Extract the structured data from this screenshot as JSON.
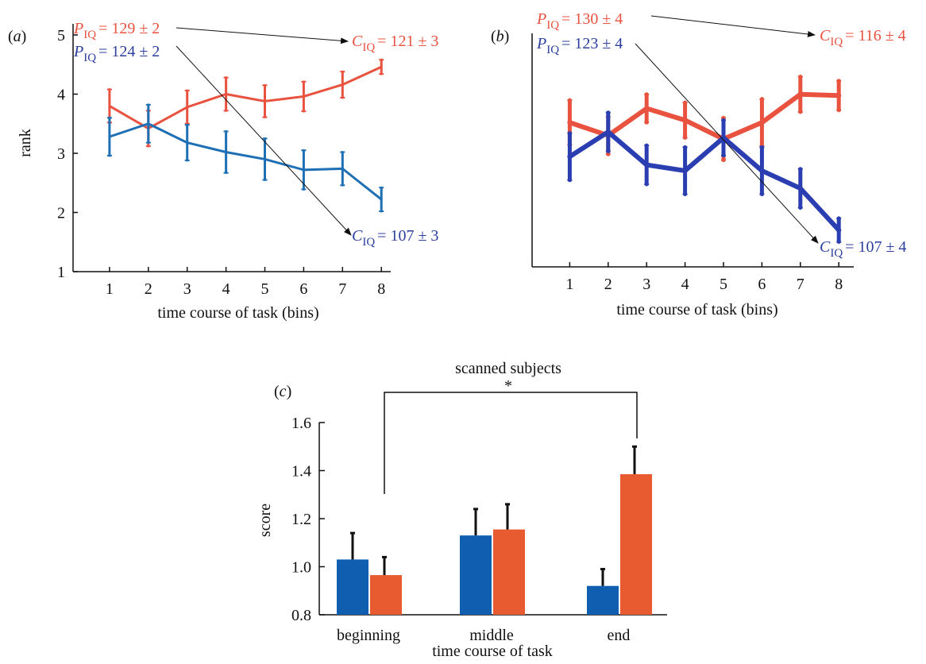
{
  "colors": {
    "red_line": "#e8523f",
    "blue_line": "#1f6fb5",
    "red_text": "#e8523f",
    "blue_text": "#2c3e9e",
    "red_bar": "#e85a30",
    "blue_bar": "#0f5eb0",
    "axis": "#111111"
  },
  "chart_data": [
    {
      "panel": "(a)",
      "panel_letter": "a",
      "type": "line",
      "xlabel": "time course of task (bins)",
      "ylabel": "rank",
      "x": [
        1,
        2,
        3,
        4,
        5,
        6,
        7,
        8
      ],
      "xlim": [
        0,
        8.5
      ],
      "ylim": [
        1,
        5
      ],
      "yticks": [
        1,
        2,
        3,
        4,
        5
      ],
      "series": [
        {
          "color": "#e8523f",
          "values": [
            3.8,
            3.42,
            3.78,
            4.0,
            3.88,
            3.96,
            4.16,
            4.46
          ],
          "errors": [
            0.28,
            0.3,
            0.28,
            0.28,
            0.27,
            0.25,
            0.22,
            0.12
          ]
        },
        {
          "color": "#1f6fb5",
          "values": [
            3.28,
            3.5,
            3.18,
            3.02,
            2.9,
            2.72,
            2.74,
            2.22
          ],
          "errors": [
            0.32,
            0.32,
            0.3,
            0.35,
            0.35,
            0.33,
            0.28,
            0.2
          ]
        }
      ],
      "annotations": [
        {
          "sym": "P",
          "sub": "IQ",
          "value": "= 129 ± 2",
          "color": "#e8523f"
        },
        {
          "sym": "P",
          "sub": "IQ",
          "value": "= 124 ± 2",
          "color": "#2c3e9e"
        },
        {
          "sym": "C",
          "sub": "IQ",
          "value": "= 121 ± 3",
          "color": "#e8523f"
        },
        {
          "sym": "C",
          "sub": "IQ",
          "value": "= 107 ± 3",
          "color": "#2c3e9e"
        }
      ]
    },
    {
      "panel": "(b)",
      "panel_letter": "b",
      "type": "line",
      "xlabel": "time course of task (bins)",
      "ylabel": "",
      "x": [
        1,
        2,
        3,
        4,
        5,
        6,
        7,
        8
      ],
      "xlim": [
        0,
        8.5
      ],
      "ylim": [
        1,
        5
      ],
      "series": [
        {
          "color": "#e8523f",
          "values": [
            3.78,
            3.56,
            4.02,
            3.82,
            3.5,
            3.78,
            4.26,
            4.24
          ],
          "errors": [
            0.38,
            0.32,
            0.24,
            0.3,
            0.36,
            0.4,
            0.3,
            0.25
          ]
        },
        {
          "color": "#2a3eb1",
          "values": [
            3.2,
            3.62,
            3.06,
            2.96,
            3.52,
            2.96,
            2.66,
            1.95
          ],
          "errors": [
            0.4,
            0.33,
            0.33,
            0.4,
            0.3,
            0.4,
            0.33,
            0.2
          ]
        }
      ],
      "annotations": [
        {
          "sym": "P",
          "sub": "IQ",
          "value": "= 130 ± 4",
          "color": "#e8523f"
        },
        {
          "sym": "P",
          "sub": "IQ",
          "value": "= 123 ± 4",
          "color": "#2c3e9e"
        },
        {
          "sym": "C",
          "sub": "IQ",
          "value": "= 116 ± 4",
          "color": "#e8523f"
        },
        {
          "sym": "C",
          "sub": "IQ",
          "value": "= 107 ± 4",
          "color": "#2c3e9e"
        }
      ]
    },
    {
      "panel": "(c)",
      "panel_letter": "c",
      "type": "bar",
      "title": "scanned subjects",
      "significance": "*",
      "xlabel": "time course of task",
      "ylabel": "score",
      "categories": [
        "beginning",
        "middle",
        "end"
      ],
      "ylim": [
        0.8,
        1.6
      ],
      "yticks": [
        "0.8",
        "1.0",
        "1.2",
        "1.4",
        "1.6"
      ],
      "series": [
        {
          "color": "#0f5eb0",
          "values": [
            1.03,
            1.13,
            0.92
          ],
          "errors": [
            0.11,
            0.11,
            0.07
          ]
        },
        {
          "color": "#e85a30",
          "values": [
            0.965,
            1.155,
            1.385
          ],
          "errors": [
            0.075,
            0.105,
            0.115
          ]
        }
      ]
    }
  ]
}
